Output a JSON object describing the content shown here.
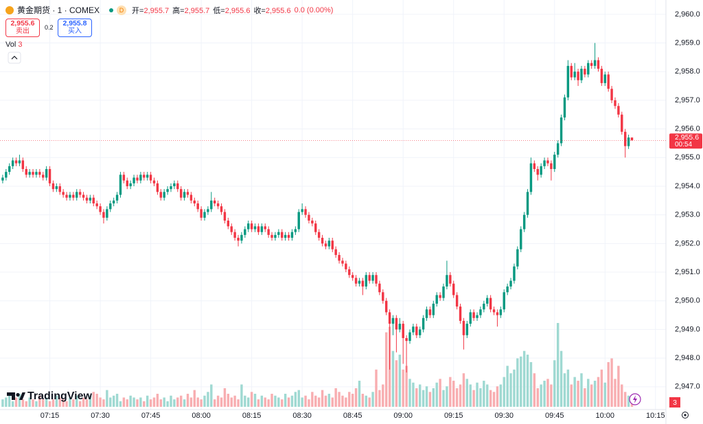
{
  "legend_bar": {
    "symbol": "黄金期货 · 1 · COMEX",
    "interval_badge": "D",
    "ohlc": [
      {
        "label": "开=",
        "value": "2,955.7"
      },
      {
        "label": "高=",
        "value": "2,955.7"
      },
      {
        "label": "低=",
        "value": "2,955.6"
      },
      {
        "label": "收=",
        "value": "2,955.6"
      }
    ],
    "change": "0.0 (0.00%)",
    "sell": {
      "price": "2,955.6",
      "label": "卖出"
    },
    "spread": "0.2",
    "buy": {
      "price": "2,955.8",
      "label": "买入"
    },
    "volume_label": "Vol"
  },
  "logo": "TradingView",
  "chart_data": {
    "type": "candlestick",
    "up_color": "#089981",
    "down_color": "#f23645",
    "volume_up_color": "#9fd9d2",
    "volume_down_color": "#f8aeb1",
    "grid": true,
    "ylim": [
      2946.3,
      2960.5
    ],
    "yticks": [
      {
        "value": 2947,
        "label": "2,947.0"
      },
      {
        "value": 2948,
        "label": "2,948.0"
      },
      {
        "value": 2949,
        "label": "2,949.0"
      },
      {
        "value": 2950,
        "label": "2,950.0"
      },
      {
        "value": 2951,
        "label": "2,951.0"
      },
      {
        "value": 2952,
        "label": "2,952.0"
      },
      {
        "value": 2953,
        "label": "2,953.0"
      },
      {
        "value": 2954,
        "label": "2,954.0"
      },
      {
        "value": 2955,
        "label": "2,955.0"
      },
      {
        "value": 2956,
        "label": "2,956.0"
      },
      {
        "value": 2957,
        "label": "2,957.0"
      },
      {
        "value": 2958,
        "label": "2,958.0"
      },
      {
        "value": 2959,
        "label": "2,959.0"
      },
      {
        "value": 2960,
        "label": "2,960.0"
      }
    ],
    "xlim": [
      -0.8,
      197.1
    ],
    "xticks": [
      {
        "value": 14,
        "label": "07:15"
      },
      {
        "value": 29,
        "label": "07:30"
      },
      {
        "value": 44,
        "label": "07:45"
      },
      {
        "value": 59,
        "label": "08:00"
      },
      {
        "value": 74,
        "label": "08:15"
      },
      {
        "value": 89,
        "label": "08:30"
      },
      {
        "value": 104,
        "label": "08:45"
      },
      {
        "value": 119,
        "label": "09:00"
      },
      {
        "value": 134,
        "label": "09:15"
      },
      {
        "value": 149,
        "label": "09:30"
      },
      {
        "value": 164,
        "label": "09:45"
      },
      {
        "value": 179,
        "label": "10:00"
      },
      {
        "value": 194,
        "label": "10:15"
      }
    ],
    "last_price": {
      "value": 2955.6,
      "label": "2,955.6"
    },
    "countdown": "00:54",
    "candles": [
      [
        2954.2,
        2954.4,
        2954.1,
        2954.3
      ],
      [
        2954.3,
        2954.6,
        2954.2,
        2954.5
      ],
      [
        2954.5,
        2954.8,
        2954.4,
        2954.7
      ],
      [
        2954.7,
        2955.0,
        2954.6,
        2954.9
      ],
      [
        2954.9,
        2955.0,
        2954.7,
        2954.8
      ],
      [
        2954.8,
        2955.1,
        2954.7,
        2954.9
      ],
      [
        2954.9,
        2955.0,
        2954.5,
        2954.6
      ],
      [
        2954.6,
        2954.7,
        2954.3,
        2954.4
      ],
      [
        2954.4,
        2954.6,
        2954.3,
        2954.5
      ],
      [
        2954.5,
        2954.6,
        2954.3,
        2954.4
      ],
      [
        2954.4,
        2954.6,
        2954.3,
        2954.5
      ],
      [
        2954.5,
        2954.6,
        2954.3,
        2954.4
      ],
      [
        2954.4,
        2954.5,
        2954.2,
        2954.3
      ],
      [
        2954.3,
        2954.7,
        2954.2,
        2954.6
      ],
      [
        2954.6,
        2954.7,
        2954.0,
        2954.1
      ],
      [
        2954.1,
        2954.2,
        2953.8,
        2953.9
      ],
      [
        2953.9,
        2954.1,
        2953.8,
        2954.0
      ],
      [
        2954.0,
        2954.1,
        2953.7,
        2953.8
      ],
      [
        2953.8,
        2953.9,
        2953.6,
        2953.7
      ],
      [
        2953.7,
        2953.8,
        2953.5,
        2953.6
      ],
      [
        2953.6,
        2953.8,
        2953.5,
        2953.7
      ],
      [
        2953.7,
        2953.8,
        2953.5,
        2953.6
      ],
      [
        2953.6,
        2953.9,
        2953.5,
        2953.8
      ],
      [
        2953.8,
        2953.9,
        2953.6,
        2953.7
      ],
      [
        2953.7,
        2953.8,
        2953.5,
        2953.6
      ],
      [
        2953.6,
        2953.7,
        2953.4,
        2953.5
      ],
      [
        2953.5,
        2953.7,
        2953.4,
        2953.6
      ],
      [
        2953.6,
        2953.7,
        2953.3,
        2953.4
      ],
      [
        2953.4,
        2953.5,
        2953.2,
        2953.3
      ],
      [
        2953.3,
        2953.4,
        2953.0,
        2953.1
      ],
      [
        2953.1,
        2953.2,
        2952.7,
        2952.9
      ],
      [
        2952.9,
        2953.3,
        2952.8,
        2953.2
      ],
      [
        2953.2,
        2953.5,
        2953.1,
        2953.4
      ],
      [
        2953.4,
        2953.6,
        2953.3,
        2953.5
      ],
      [
        2953.5,
        2953.8,
        2953.4,
        2953.7
      ],
      [
        2953.7,
        2954.5,
        2953.6,
        2954.4
      ],
      [
        2954.4,
        2954.5,
        2954.1,
        2954.2
      ],
      [
        2954.2,
        2954.3,
        2953.9,
        2954.0
      ],
      [
        2954.0,
        2954.2,
        2953.9,
        2954.1
      ],
      [
        2954.1,
        2954.4,
        2954.0,
        2954.3
      ],
      [
        2954.3,
        2954.4,
        2954.1,
        2954.2
      ],
      [
        2954.2,
        2954.5,
        2954.1,
        2954.4
      ],
      [
        2954.4,
        2954.5,
        2954.2,
        2954.3
      ],
      [
        2954.3,
        2954.5,
        2954.2,
        2954.4
      ],
      [
        2954.4,
        2954.5,
        2954.1,
        2954.2
      ],
      [
        2954.2,
        2954.3,
        2954.0,
        2954.1
      ],
      [
        2954.1,
        2954.2,
        2953.7,
        2953.8
      ],
      [
        2953.8,
        2953.9,
        2953.5,
        2953.6
      ],
      [
        2953.6,
        2953.9,
        2953.5,
        2953.8
      ],
      [
        2953.8,
        2954.0,
        2953.7,
        2953.9
      ],
      [
        2953.9,
        2954.1,
        2953.8,
        2954.0
      ],
      [
        2954.0,
        2954.2,
        2953.9,
        2954.1
      ],
      [
        2954.1,
        2954.2,
        2953.8,
        2953.9
      ],
      [
        2953.9,
        2954.0,
        2953.5,
        2953.6
      ],
      [
        2953.6,
        2953.9,
        2953.5,
        2953.8
      ],
      [
        2953.8,
        2953.9,
        2953.6,
        2953.7
      ],
      [
        2953.7,
        2953.8,
        2953.4,
        2953.5
      ],
      [
        2953.5,
        2953.6,
        2953.3,
        2953.4
      ],
      [
        2953.4,
        2953.5,
        2953.1,
        2953.2
      ],
      [
        2953.2,
        2953.3,
        2952.8,
        2952.9
      ],
      [
        2952.9,
        2953.2,
        2952.8,
        2953.1
      ],
      [
        2953.1,
        2953.3,
        2953.0,
        2953.2
      ],
      [
        2953.2,
        2953.8,
        2953.1,
        2953.5
      ],
      [
        2953.5,
        2953.6,
        2953.3,
        2953.4
      ],
      [
        2953.4,
        2953.5,
        2953.2,
        2953.3
      ],
      [
        2953.3,
        2953.4,
        2953.0,
        2953.1
      ],
      [
        2953.1,
        2953.2,
        2952.7,
        2952.8
      ],
      [
        2952.8,
        2952.9,
        2952.5,
        2952.6
      ],
      [
        2952.6,
        2952.7,
        2952.3,
        2952.4
      ],
      [
        2952.4,
        2952.5,
        2952.1,
        2952.2
      ],
      [
        2952.2,
        2952.3,
        2951.9,
        2952.1
      ],
      [
        2952.1,
        2952.4,
        2952.0,
        2952.3
      ],
      [
        2952.3,
        2952.6,
        2952.2,
        2952.5
      ],
      [
        2952.5,
        2952.8,
        2952.4,
        2952.7
      ],
      [
        2952.7,
        2952.8,
        2952.4,
        2952.5
      ],
      [
        2952.5,
        2952.7,
        2952.4,
        2952.6
      ],
      [
        2952.6,
        2952.7,
        2952.3,
        2952.4
      ],
      [
        2952.4,
        2952.7,
        2952.3,
        2952.6
      ],
      [
        2952.6,
        2952.7,
        2952.4,
        2952.5
      ],
      [
        2952.5,
        2952.6,
        2952.2,
        2952.3
      ],
      [
        2952.3,
        2952.4,
        2952.1,
        2952.2
      ],
      [
        2952.2,
        2952.4,
        2952.1,
        2952.3
      ],
      [
        2952.3,
        2952.5,
        2952.2,
        2952.4
      ],
      [
        2952.4,
        2952.5,
        2952.1,
        2952.2
      ],
      [
        2952.2,
        2952.4,
        2952.1,
        2952.3
      ],
      [
        2952.3,
        2952.4,
        2952.1,
        2952.2
      ],
      [
        2952.2,
        2952.5,
        2952.1,
        2952.4
      ],
      [
        2952.4,
        2952.6,
        2952.3,
        2952.5
      ],
      [
        2952.5,
        2953.2,
        2952.4,
        2953.1
      ],
      [
        2953.1,
        2953.4,
        2953.0,
        2953.2
      ],
      [
        2953.2,
        2953.3,
        2952.9,
        2953.0
      ],
      [
        2953.0,
        2953.1,
        2952.7,
        2952.8
      ],
      [
        2952.8,
        2952.9,
        2952.6,
        2952.7
      ],
      [
        2952.7,
        2952.8,
        2952.3,
        2952.4
      ],
      [
        2952.4,
        2952.5,
        2952.1,
        2952.2
      ],
      [
        2952.2,
        2952.3,
        2951.9,
        2952.0
      ],
      [
        2952.0,
        2952.1,
        2951.8,
        2951.9
      ],
      [
        2951.9,
        2952.2,
        2951.8,
        2952.1
      ],
      [
        2952.1,
        2952.2,
        2951.7,
        2951.8
      ],
      [
        2951.8,
        2951.9,
        2951.5,
        2951.6
      ],
      [
        2951.6,
        2951.7,
        2951.3,
        2951.4
      ],
      [
        2951.4,
        2951.5,
        2951.2,
        2951.3
      ],
      [
        2951.3,
        2951.4,
        2951.0,
        2951.1
      ],
      [
        2951.1,
        2951.2,
        2950.8,
        2950.9
      ],
      [
        2950.9,
        2951.0,
        2950.7,
        2950.8
      ],
      [
        2950.8,
        2950.9,
        2950.5,
        2950.6
      ],
      [
        2950.6,
        2950.8,
        2950.5,
        2950.7
      ],
      [
        2950.7,
        2950.8,
        2950.2,
        2950.5
      ],
      [
        2950.5,
        2951.0,
        2950.4,
        2950.9
      ],
      [
        2950.9,
        2951.0,
        2950.6,
        2950.7
      ],
      [
        2950.7,
        2951.0,
        2950.6,
        2950.9
      ],
      [
        2950.9,
        2951.0,
        2950.5,
        2950.6
      ],
      [
        2950.6,
        2950.7,
        2950.2,
        2950.3
      ],
      [
        2950.3,
        2950.4,
        2949.9,
        2950.0
      ],
      [
        2950.0,
        2950.1,
        2949.5,
        2949.6
      ],
      [
        2949.6,
        2949.7,
        2947.6,
        2949.2
      ],
      [
        2949.2,
        2949.5,
        2948.8,
        2949.4
      ],
      [
        2949.4,
        2949.5,
        2948.2,
        2949.0
      ],
      [
        2949.0,
        2949.4,
        2948.9,
        2949.2
      ],
      [
        2949.2,
        2949.3,
        2947.8,
        2948.7
      ],
      [
        2948.7,
        2948.8,
        2947.5,
        2948.6
      ],
      [
        2948.6,
        2949.0,
        2948.5,
        2948.9
      ],
      [
        2948.9,
        2949.2,
        2948.8,
        2949.1
      ],
      [
        2949.1,
        2949.2,
        2948.7,
        2948.8
      ],
      [
        2948.8,
        2949.1,
        2948.7,
        2949.0
      ],
      [
        2949.0,
        2949.5,
        2948.9,
        2949.4
      ],
      [
        2949.4,
        2949.8,
        2949.3,
        2949.7
      ],
      [
        2949.7,
        2949.8,
        2949.4,
        2949.5
      ],
      [
        2949.5,
        2950.0,
        2949.4,
        2949.9
      ],
      [
        2949.9,
        2950.3,
        2949.8,
        2950.2
      ],
      [
        2950.2,
        2950.3,
        2950.0,
        2950.1
      ],
      [
        2950.1,
        2950.6,
        2950.0,
        2950.5
      ],
      [
        2950.5,
        2951.4,
        2950.4,
        2950.9
      ],
      [
        2950.9,
        2951.0,
        2950.5,
        2950.6
      ],
      [
        2950.6,
        2950.7,
        2950.1,
        2950.2
      ],
      [
        2950.2,
        2950.3,
        2949.7,
        2949.8
      ],
      [
        2949.8,
        2949.9,
        2949.2,
        2949.3
      ],
      [
        2949.3,
        2949.4,
        2948.3,
        2948.8
      ],
      [
        2948.8,
        2949.3,
        2948.7,
        2949.2
      ],
      [
        2949.2,
        2949.7,
        2949.1,
        2949.6
      ],
      [
        2949.6,
        2949.7,
        2949.3,
        2949.4
      ],
      [
        2949.4,
        2949.6,
        2949.3,
        2949.5
      ],
      [
        2949.5,
        2949.8,
        2949.4,
        2949.7
      ],
      [
        2949.7,
        2950.0,
        2949.6,
        2949.9
      ],
      [
        2949.9,
        2950.2,
        2949.8,
        2950.1
      ],
      [
        2950.1,
        2950.2,
        2949.6,
        2949.7
      ],
      [
        2949.7,
        2949.8,
        2949.5,
        2949.6
      ],
      [
        2949.6,
        2949.7,
        2949.1,
        2949.5
      ],
      [
        2949.5,
        2949.8,
        2949.4,
        2949.7
      ],
      [
        2949.7,
        2950.4,
        2949.6,
        2950.3
      ],
      [
        2950.3,
        2950.6,
        2950.2,
        2950.5
      ],
      [
        2950.5,
        2950.8,
        2950.4,
        2950.7
      ],
      [
        2950.7,
        2951.3,
        2950.6,
        2951.2
      ],
      [
        2951.2,
        2951.9,
        2951.1,
        2951.8
      ],
      [
        2951.8,
        2952.6,
        2951.7,
        2952.5
      ],
      [
        2952.5,
        2953.1,
        2952.4,
        2953.0
      ],
      [
        2953.0,
        2953.9,
        2952.9,
        2953.8
      ],
      [
        2953.8,
        2955.0,
        2953.7,
        2954.8
      ],
      [
        2954.8,
        2954.9,
        2954.5,
        2954.6
      ],
      [
        2954.6,
        2954.7,
        2954.2,
        2954.4
      ],
      [
        2954.4,
        2954.8,
        2954.3,
        2954.7
      ],
      [
        2954.7,
        2955.0,
        2954.6,
        2954.9
      ],
      [
        2954.9,
        2955.0,
        2954.7,
        2954.8
      ],
      [
        2954.8,
        2954.9,
        2954.2,
        2954.6
      ],
      [
        2954.6,
        2955.2,
        2954.5,
        2955.1
      ],
      [
        2955.1,
        2955.6,
        2955.0,
        2955.5
      ],
      [
        2955.5,
        2956.5,
        2955.4,
        2956.4
      ],
      [
        2956.4,
        2957.2,
        2956.3,
        2957.1
      ],
      [
        2957.1,
        2958.4,
        2957.0,
        2958.2
      ],
      [
        2958.2,
        2958.3,
        2957.7,
        2957.8
      ],
      [
        2957.8,
        2958.3,
        2957.7,
        2958.0
      ],
      [
        2958.0,
        2958.1,
        2957.5,
        2957.7
      ],
      [
        2957.7,
        2958.2,
        2957.6,
        2958.1
      ],
      [
        2958.1,
        2958.2,
        2957.8,
        2957.9
      ],
      [
        2957.9,
        2958.4,
        2957.8,
        2958.3
      ],
      [
        2958.3,
        2958.4,
        2958.1,
        2958.2
      ],
      [
        2958.2,
        2959.0,
        2958.1,
        2958.4
      ],
      [
        2958.4,
        2958.5,
        2958.0,
        2958.1
      ],
      [
        2958.1,
        2958.2,
        2957.5,
        2957.6
      ],
      [
        2957.6,
        2958.0,
        2957.5,
        2957.9
      ],
      [
        2957.9,
        2958.0,
        2957.3,
        2957.4
      ],
      [
        2957.4,
        2957.5,
        2956.9,
        2957.0
      ],
      [
        2957.0,
        2957.1,
        2956.7,
        2956.8
      ],
      [
        2956.8,
        2956.9,
        2956.4,
        2956.5
      ],
      [
        2956.5,
        2956.6,
        2955.8,
        2955.9
      ],
      [
        2955.9,
        2956.0,
        2955.0,
        2955.4
      ],
      [
        2955.4,
        2955.8,
        2955.3,
        2955.7
      ],
      [
        2955.7,
        2955.7,
        2955.6,
        2955.6
      ]
    ],
    "volume": [
      4,
      5,
      6,
      3,
      5,
      7,
      4,
      3,
      5,
      4,
      3,
      6,
      4,
      5,
      3,
      4,
      6,
      5,
      4,
      3,
      5,
      4,
      6,
      3,
      5,
      4,
      6,
      8,
      7,
      5,
      4,
      9,
      5,
      6,
      7,
      3,
      5,
      4,
      6,
      5,
      4,
      5,
      3,
      6,
      4,
      5,
      7,
      4,
      5,
      3,
      6,
      4,
      5,
      6,
      4,
      7,
      5,
      9,
      5,
      4,
      6,
      8,
      12,
      4,
      6,
      5,
      10,
      7,
      5,
      6,
      4,
      12,
      6,
      5,
      8,
      7,
      4,
      6,
      5,
      4,
      7,
      6,
      5,
      4,
      7,
      5,
      6,
      8,
      9,
      5,
      6,
      4,
      8,
      6,
      5,
      9,
      6,
      7,
      5,
      10,
      8,
      6,
      5,
      8,
      7,
      10,
      14,
      7,
      6,
      5,
      8,
      20,
      9,
      12,
      40,
      43,
      30,
      25,
      28,
      20,
      22,
      15,
      13,
      10,
      12,
      9,
      11,
      8,
      10,
      13,
      15,
      9,
      11,
      16,
      14,
      10,
      12,
      18,
      15,
      12,
      9,
      13,
      10,
      14,
      12,
      9,
      8,
      11,
      12,
      16,
      22,
      18,
      20,
      26,
      27,
      30,
      28,
      24,
      18,
      10,
      12,
      14,
      15,
      12,
      25,
      45,
      30,
      18,
      20,
      12,
      16,
      14,
      18,
      10,
      15,
      12,
      14,
      16,
      20,
      13,
      24,
      26,
      15,
      22,
      12,
      8,
      6,
      3
    ]
  }
}
